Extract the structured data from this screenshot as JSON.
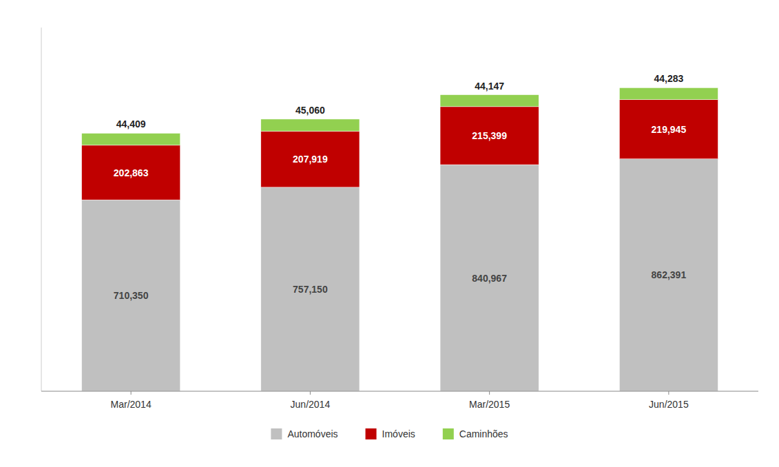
{
  "chart_data": {
    "type": "bar",
    "stacked": true,
    "categories": [
      "Mar/2014",
      "Jun/2014",
      "Mar/2015",
      "Jun/2015"
    ],
    "series": [
      {
        "name": "Automóveis",
        "color": "#C0C0C0",
        "values": [
          710350,
          757150,
          840967,
          862391
        ],
        "value_labels": [
          "710,350",
          "757,150",
          "840,967",
          "862,391"
        ]
      },
      {
        "name": "Imóveis",
        "color": "#C00000",
        "values": [
          202863,
          207919,
          215399,
          219945
        ],
        "value_labels": [
          "202,863",
          "207,919",
          "215,399",
          "219,945"
        ]
      },
      {
        "name": "Caminhões",
        "color": "#92D050",
        "values": [
          44409,
          45060,
          44147,
          44283
        ],
        "value_labels": [
          "44,409",
          "45,060",
          "44,147",
          "44,283"
        ]
      }
    ],
    "ylim": [
      0,
      1350000
    ],
    "grid": false,
    "legend": "bottom",
    "data_labels": true,
    "tick_labels": "x"
  }
}
